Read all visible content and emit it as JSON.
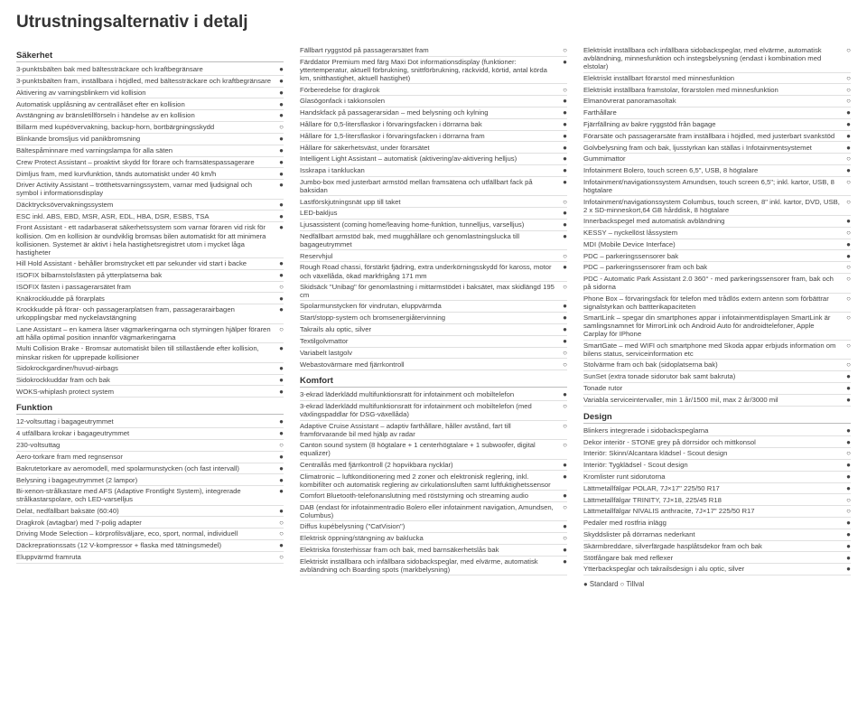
{
  "page_title": "Utrustningsalternativ i detalj",
  "legend": "● Standard   ○ Tillval",
  "marks": {
    "std": "●",
    "opt": "○",
    "none": ""
  },
  "columns": [
    {
      "sections": [
        {
          "title": "Säkerhet",
          "items": [
            {
              "label": "3-punktsbälten bak med bältessträckare och kraftbegränsare",
              "mark": "std"
            },
            {
              "label": "3-punktsbälten fram, inställbara i höjdled, med bältessträckare och kraftbegränsare",
              "mark": "std"
            },
            {
              "label": "Aktivering av varningsblinkern vid kollision",
              "mark": "std"
            },
            {
              "label": "Automatisk upplåsning av centrallåset efter en kollision",
              "mark": "std"
            },
            {
              "label": "Avstängning av bränsletillförseln i händelse av en kollision",
              "mark": "std"
            },
            {
              "label": "Billarm med kupéövervakning, backup-horn, bortbärgningsskydd",
              "mark": "opt"
            },
            {
              "label": "Blinkande bromsljus vid panikbromsning",
              "mark": "std"
            },
            {
              "label": "Bältespåminnare med varningslampa för alla säten",
              "mark": "std"
            },
            {
              "label": "Crew Protect Assistant – proaktivt skydd för förare och framsätespassagerare",
              "mark": "std"
            },
            {
              "label": "Dimljus fram, med kurvfunktion, tänds automatiskt under 40 km/h",
              "mark": "std"
            },
            {
              "label": "Driver Activity Assistant – trötthetsvarningssystem, varnar med ljudsignal och symbol i informationsdisplay",
              "mark": "std"
            },
            {
              "label": "Däcktrycksövervakningssystem",
              "mark": "std"
            },
            {
              "label": "ESC inkl. ABS, EBD, MSR, ASR, EDL, HBA, DSR, ESBS, TSA",
              "mark": "std"
            },
            {
              "label": "Front Assistant - ett radarbaserat säkerhetssystem som varnar föraren vid risk för kollision. Om en kollision är oundviklig bromsas bilen automatiskt för att minimera kollisionen. Systemet är aktivt i hela hastighetsregistret utom i mycket låga hastigheter",
              "mark": "std"
            },
            {
              "label": "Hill Hold Assistant - behåller bromstrycket ett par sekunder vid start i backe",
              "mark": "std"
            },
            {
              "label": "ISOFIX bilbarnstolsfästen på ytterplatserna bak",
              "mark": "std"
            },
            {
              "label": "ISOFIX fästen i passagerarsätet fram",
              "mark": "opt"
            },
            {
              "label": "Knäkrockkudde på förarplats",
              "mark": "std"
            },
            {
              "label": "Krockkudde på förar- och passagerarplatsen fram, passagerarairbagen urkopplingsbar med nyckelavstängning",
              "mark": "std"
            },
            {
              "label": "Lane Assistant – en kamera läser vägmarkeringarna och styrningen hjälper föraren att hålla optimal position innanför vägmarkeringarna",
              "mark": "opt"
            },
            {
              "label": "Multi Collision Brake - Bromsar automatiskt bilen till stillastående efter kollision, minskar risken för upprepade kollisioner",
              "mark": "std"
            },
            {
              "label": "Sidokrockgardiner/huvud-airbags",
              "mark": "std"
            },
            {
              "label": "Sidokrockkuddar fram och bak",
              "mark": "std"
            },
            {
              "label": "WOKS-whiplash protect system",
              "mark": "std"
            }
          ]
        },
        {
          "title": "Funktion",
          "items": [
            {
              "label": "12-voltsuttag i bagageutrymmet",
              "mark": "std"
            },
            {
              "label": "4 utfällbara krokar i bagageutrymmet",
              "mark": "std"
            },
            {
              "label": "230-voltsuttag",
              "mark": "opt"
            },
            {
              "label": "Aero-torkare fram med regnsensor",
              "mark": "std"
            },
            {
              "label": "Bakrutetorkare av aeromodell, med spolarmunstycken (och fast intervall)",
              "mark": "std"
            },
            {
              "label": "Belysning i bagageutrymmet (2 lampor)",
              "mark": "std"
            },
            {
              "label": "Bi-xenon-strålkastare med AFS (Adaptive Frontlight System), integrerade strålkastarspolare, och LED-varselljus",
              "mark": "std"
            },
            {
              "label": "Delat, nedfällbart baksäte (60:40)",
              "mark": "std"
            },
            {
              "label": "Dragkrok (avtagbar) med 7-polig adapter",
              "mark": "opt"
            },
            {
              "label": "Driving Mode Selection – körprofilsväljare, eco, sport, normal, individuell",
              "mark": "opt"
            },
            {
              "label": "Däckreprationssats (12 V-kompressor + flaska med tätningsmedel)",
              "mark": "std"
            },
            {
              "label": "Eluppvärmd framruta",
              "mark": "opt"
            }
          ]
        }
      ]
    },
    {
      "sections": [
        {
          "title": "",
          "items": [
            {
              "label": "Fällbart ryggstöd på passagerarsätet fram",
              "mark": "opt"
            },
            {
              "label": "Färddator Premium med färg Maxi Dot informationsdisplay (funktioner: yttertemperatur, aktuell förbrukning, snittförbrukning, räckvidd, körtid, antal körda km, snitthastighet, aktuell hastighet)",
              "mark": "std"
            },
            {
              "label": "Förberedelse för dragkrok",
              "mark": "opt"
            },
            {
              "label": "Glasögonfack i takkonsolen",
              "mark": "std"
            },
            {
              "label": "Handskfack på passagerarsidan – med belysning och kylning",
              "mark": "std"
            },
            {
              "label": "Hållare för 0,5-litersflaskor i förvaringsfacken i dörrarna bak",
              "mark": "std"
            },
            {
              "label": "Hållare för 1,5-litersflaskor i förvaringsfacken i dörrarna fram",
              "mark": "std"
            },
            {
              "label": "Hållare för säkerhetsväst, under förarsätet",
              "mark": "std"
            },
            {
              "label": "Intelligent Light Assistant – automatisk (aktivering/av-aktivering helljus)",
              "mark": "std"
            },
            {
              "label": "Isskrapa i tankluckan",
              "mark": "std"
            },
            {
              "label": "Jumbo-box med justerbart armstöd mellan framsätena och utfällbart fack på baksidan",
              "mark": "std"
            },
            {
              "label": "Lastförskjutningsnät upp till taket",
              "mark": "opt"
            },
            {
              "label": "LED-bakljus",
              "mark": "std"
            },
            {
              "label": "Ljusassistent (coming home/leaving home-funktion, tunnelljus, varselljus)",
              "mark": "std"
            },
            {
              "label": "Nedfällbart armstöd bak, med mugghållare och genomlastningslucka till bagageutrymmet",
              "mark": "std"
            },
            {
              "label": "Reservhjul",
              "mark": "opt"
            },
            {
              "label": "Rough Road chassi, förstärkt fjädring, extra underkörningsskydd för kaross, motor och växellåda, ökad markfrigång 171 mm",
              "mark": "std"
            },
            {
              "label": "Skidsäck \"Unibag\" för genomlastning i mittarmstödet i baksätet, max skidlängd 195 cm",
              "mark": "opt"
            },
            {
              "label": "Spolarmunstycken för vindrutan, eluppvärmda",
              "mark": "std"
            },
            {
              "label": "Start/stopp-system och bromsenergiåtervinning",
              "mark": "std"
            },
            {
              "label": "Takrails alu optic, silver",
              "mark": "std"
            },
            {
              "label": "Textilgolvmattor",
              "mark": "std"
            },
            {
              "label": "Variabelt lastgolv",
              "mark": "opt"
            },
            {
              "label": "Webastovärmare med fjärrkontroll",
              "mark": "opt"
            }
          ]
        },
        {
          "title": "Komfort",
          "items": [
            {
              "label": "3-ekrad läderklädd multifunktionsratt för infotainment och mobiltelefon",
              "mark": "std"
            },
            {
              "label": "3-ekrad läderklädd multifunktionsratt för infotainment och mobiltelefon (med växlingspaddlar för DSG-växellåda)",
              "mark": "opt"
            },
            {
              "label": "Adaptive Cruise Assistant – adaptiv farthållare, håller avstånd, fart till framförvarande bil med hjälp av radar",
              "mark": "opt"
            },
            {
              "label": "Canton sound system (8 högtalare + 1 centerhögtalare + 1 subwoofer, digital equalizer)",
              "mark": "opt"
            },
            {
              "label": "Centrallås med fjärrkontroll (2 hopvikbara nycklar)",
              "mark": "std"
            },
            {
              "label": "Climatronic – luftkonditionering med 2 zoner och elektronisk reglering, inkl. kombifilter och automatisk reglering av cirkulationsluften samt luftfuktighetssensor",
              "mark": "std"
            },
            {
              "label": "Comfort Bluetooth-telefonanslutning med röststyrning och streaming audio",
              "mark": "std"
            },
            {
              "label": "DAB (endast för infotainmentradio Bolero eller infotainment navigation, Amundsen, Columbus)",
              "mark": "opt"
            },
            {
              "label": "Diffus kupébelysning (\"CatVision\")",
              "mark": "std"
            },
            {
              "label": "Elektrisk öppning/stängning av baklucka",
              "mark": "opt"
            },
            {
              "label": "Elektriska fönsterhissar fram och bak, med barnsäkerhetslås bak",
              "mark": "std"
            },
            {
              "label": "Elektriskt inställbara och infällbara sidobackspeglar, med elvärme, automatisk avbländning och Boarding spots (markbelysning)",
              "mark": "std"
            }
          ]
        }
      ]
    },
    {
      "sections": [
        {
          "title": "",
          "items": [
            {
              "label": "Elektriskt inställbara och infällbara sidobackspeglar, med elvärme, automatisk avbländning, minnesfunktion och instegsbelysning (endast i kombination med elstolar)",
              "mark": "opt"
            },
            {
              "label": "Elektriskt inställbart förarstol med minnesfunktion",
              "mark": "opt"
            },
            {
              "label": "Elektriskt inställbara framstolar, förarstolen med minnesfunktion",
              "mark": "opt"
            },
            {
              "label": "Elmanövrerat panoramasoltak",
              "mark": "opt"
            },
            {
              "label": "Farthållare",
              "mark": "std"
            },
            {
              "label": "Fjärrfällning av bakre ryggstöd från bagage",
              "mark": "std"
            },
            {
              "label": "Förarsäte och passagerarsäte fram inställbara i höjdled, med justerbart svankstöd",
              "mark": "std"
            },
            {
              "label": "Golvbelysning fram och bak, ljusstyrkan kan ställas i Infotainmentsystemet",
              "mark": "std"
            },
            {
              "label": "Gummimattor",
              "mark": "opt"
            },
            {
              "label": "Infotainment Bolero, touch screen 6,5\", USB, 8 högtalare",
              "mark": "std"
            },
            {
              "label": "Infotainment/navigationssystem Amundsen, touch screen 6,5\"; inkl. kartor, USB, 8 högtalare",
              "mark": "opt"
            },
            {
              "label": "Infotainment/navigationssystem Columbus, touch screen, 8\" inkl. kartor, DVD, USB, 2 x SD-minneskort,64 GB hårddisk, 8 högtalare",
              "mark": "opt"
            },
            {
              "label": "Innerbackspegel med automatisk avbländning",
              "mark": "std"
            },
            {
              "label": "KESSY – nyckellöst låssystem",
              "mark": "opt"
            },
            {
              "label": "MDI (Mobile Device Interface)",
              "mark": "std"
            },
            {
              "label": "PDC – parkeringssensorer bak",
              "mark": "std"
            },
            {
              "label": "PDC – parkeringssensorer fram och bak",
              "mark": "opt"
            },
            {
              "label": "PDC - Automatic Park Assistant 2.0 360° - med parkeringssensorer fram, bak och på sidorna",
              "mark": "opt"
            },
            {
              "label": "Phone Box – förvaringsfack för telefon med trådlös extern antenn som förbättrar signalstyrkan och battterikapaciteten",
              "mark": "opt"
            },
            {
              "label": "SmartLink – spegar din smartphones appar i infotainmentdisplayen SmartLink är samlingsnamnet för MirrorLink och Android Auto för androidtelefoner, Apple Carplay för IPhone",
              "mark": "opt"
            },
            {
              "label": "SmartGate – med WIFI och smartphone med Skoda appar erbjuds information om bilens status, serviceinformation etc",
              "mark": "opt"
            },
            {
              "label": "Stolvärme fram och bak (sidoplatserna bak)",
              "mark": "opt"
            },
            {
              "label": "SunSet (extra tonade sidorutor bak samt bakruta)",
              "mark": "std"
            },
            {
              "label": "Tonade rutor",
              "mark": "std"
            },
            {
              "label": "Variabla serviceintervaller, min 1 år/1500 mil, max 2 år/3000 mil",
              "mark": "std"
            }
          ]
        },
        {
          "title": "Design",
          "items": [
            {
              "label": "Blinkers integrerade i sidobackspeglarna",
              "mark": "std"
            },
            {
              "label": "Dekor interiör - STONE grey på dörrsidor och mittkonsol",
              "mark": "std"
            },
            {
              "label": "Interiör: Skinn/Alcantara klädsel - Scout design",
              "mark": "opt"
            },
            {
              "label": "Interiör: Tygklädsel - Scout design",
              "mark": "std"
            },
            {
              "label": "Kromlister runt sidorutorna",
              "mark": "std"
            },
            {
              "label": "Lättmetallfälgar POLAR, 7J×17\" 225/50 R17",
              "mark": "std"
            },
            {
              "label": "Lättmetallfälgar TRINITY, 7J×18, 225/45 R18",
              "mark": "opt"
            },
            {
              "label": "Lättmetallfälgar NIVALIS anthracite, 7J×17\" 225/50 R17",
              "mark": "opt"
            },
            {
              "label": "Pedaler med rostfria inlägg",
              "mark": "std"
            },
            {
              "label": "Skyddslister på dörrarnas nederkant",
              "mark": "std"
            },
            {
              "label": "Skärmbreddare, silverfärgade hasplåtsdekor fram och bak",
              "mark": "std"
            },
            {
              "label": "Stötfångare bak med reflexer",
              "mark": "std"
            },
            {
              "label": "Ytterbackspeglar och takrailsdesign i alu optic, silver",
              "mark": "std"
            }
          ]
        }
      ]
    }
  ]
}
